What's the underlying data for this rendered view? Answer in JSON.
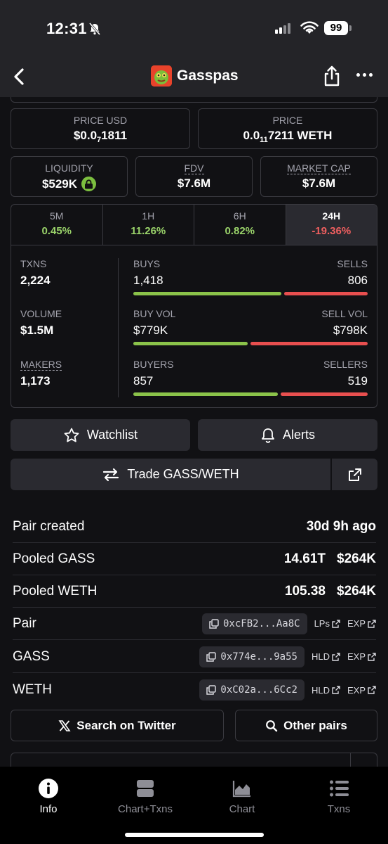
{
  "status": {
    "time": "12:31",
    "battery": "99"
  },
  "nav": {
    "title": "Gasspas"
  },
  "prices": {
    "usd": {
      "label": "PRICE USD",
      "prefix": "$0.0",
      "sub": "7",
      "suffix": "1811"
    },
    "native": {
      "label": "PRICE",
      "prefix": "0.0",
      "sub": "11",
      "suffix": "7211 WETH"
    }
  },
  "metrics": {
    "liquidity": {
      "label": "LIQUIDITY",
      "value": "$529K"
    },
    "fdv": {
      "label": "FDV",
      "value": "$7.6M"
    },
    "mcap": {
      "label": "MARKET CAP",
      "value": "$7.6M"
    }
  },
  "timeframes": [
    {
      "label": "5M",
      "value": "0.45%"
    },
    {
      "label": "1H",
      "value": "11.26%"
    },
    {
      "label": "6H",
      "value": "0.82%"
    },
    {
      "label": "24H",
      "value": "-19.36%"
    }
  ],
  "stats": {
    "txns": {
      "label": "TXNS",
      "value": "2,224"
    },
    "volume": {
      "label": "VOLUME",
      "value": "$1.5M"
    },
    "makers": {
      "label": "MAKERS",
      "value": "1,173"
    },
    "buys_sells": {
      "left_label": "BUYS",
      "right_label": "SELLS",
      "left": "1,418",
      "right": "806",
      "left_fraction": 0.638
    },
    "vol_split": {
      "left_label": "BUY VOL",
      "right_label": "SELL VOL",
      "left": "$779K",
      "right": "$798K",
      "left_fraction": 0.494
    },
    "buyers_sellers": {
      "left_label": "BUYERS",
      "right_label": "SELLERS",
      "left": "857",
      "right": "519",
      "left_fraction": 0.623
    }
  },
  "actions": {
    "watchlist": "Watchlist",
    "alerts": "Alerts",
    "trade": "Trade GASS/WETH"
  },
  "info": {
    "pair_created": {
      "label": "Pair created",
      "value": "30d 9h ago"
    },
    "pooled_base": {
      "label": "Pooled GASS",
      "amount": "14.61T",
      "usd": "$264K"
    },
    "pooled_quote": {
      "label": "Pooled WETH",
      "amount": "105.38",
      "usd": "$264K"
    },
    "pair": {
      "label": "Pair",
      "address": "0xcFB2...Aa8C",
      "link1": "LPs",
      "link2": "EXP"
    },
    "base": {
      "label": "GASS",
      "address": "0x774e...9a55",
      "link1": "HLD",
      "link2": "EXP"
    },
    "quote": {
      "label": "WETH",
      "address": "0xC02a...6Cc2",
      "link1": "HLD",
      "link2": "EXP"
    }
  },
  "search": {
    "twitter": "Search on Twitter",
    "other_pairs": "Other pairs"
  },
  "tabs": [
    {
      "label": "Info",
      "icon": "info-icon",
      "active": true
    },
    {
      "label": "Chart+Txns",
      "icon": "split-view-icon",
      "active": false
    },
    {
      "label": "Chart",
      "icon": "area-chart-icon",
      "active": false
    },
    {
      "label": "Txns",
      "icon": "list-icon",
      "active": false
    }
  ],
  "colors": {
    "positive": "#9ad36a",
    "negative": "#ef5f5f",
    "buy_bar": "#8bc34a",
    "sell_bar": "#e84f4f",
    "background": "#111114",
    "surface": "#2a2a30"
  }
}
